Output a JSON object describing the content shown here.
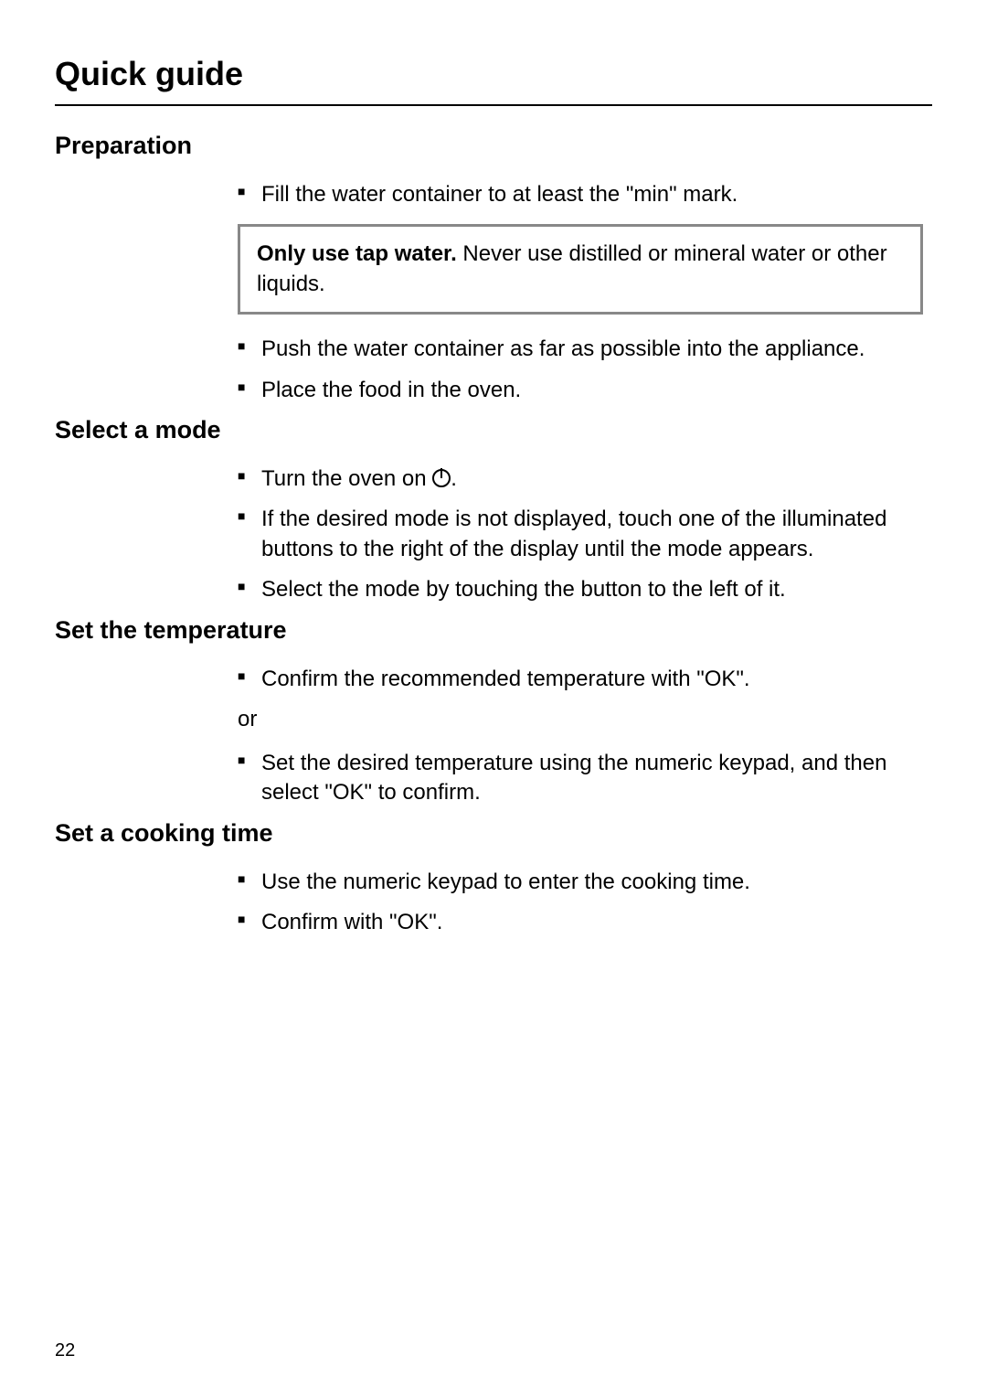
{
  "page": {
    "title": "Quick guide",
    "number": "22"
  },
  "sections": [
    {
      "heading": "Preparation",
      "blocks": [
        {
          "type": "bullet",
          "text": "Fill the water container to at least the \"min\" mark."
        },
        {
          "type": "note",
          "strong": "Only use tap water.",
          "rest": " Never use distilled or mineral water or other liquids."
        },
        {
          "type": "bullet",
          "text": "Push the water container as far as possible into the appliance."
        },
        {
          "type": "bullet",
          "text": "Place the food in the oven."
        }
      ]
    },
    {
      "heading": "Select a mode",
      "blocks": [
        {
          "type": "bullet_icon",
          "pre": "Turn the oven on ",
          "icon": "power-icon",
          "post": "."
        },
        {
          "type": "bullet",
          "text": "If the desired mode is not displayed, touch one of the illuminated buttons to the right of the display until the mode appears."
        },
        {
          "type": "bullet",
          "text": "Select the mode by touching the button to the left of it."
        }
      ]
    },
    {
      "heading": "Set the temperature",
      "blocks": [
        {
          "type": "bullet",
          "text": "Confirm the recommended temperature with \"OK\"."
        },
        {
          "type": "or",
          "text": "or"
        },
        {
          "type": "bullet",
          "text": "Set the desired temperature using the numeric keypad, and then select \"OK\" to confirm."
        }
      ]
    },
    {
      "heading": "Set a cooking time",
      "blocks": [
        {
          "type": "bullet",
          "text": "Use the numeric keypad to enter the cooking time."
        },
        {
          "type": "bullet",
          "text": "Confirm with \"OK\"."
        }
      ]
    }
  ]
}
